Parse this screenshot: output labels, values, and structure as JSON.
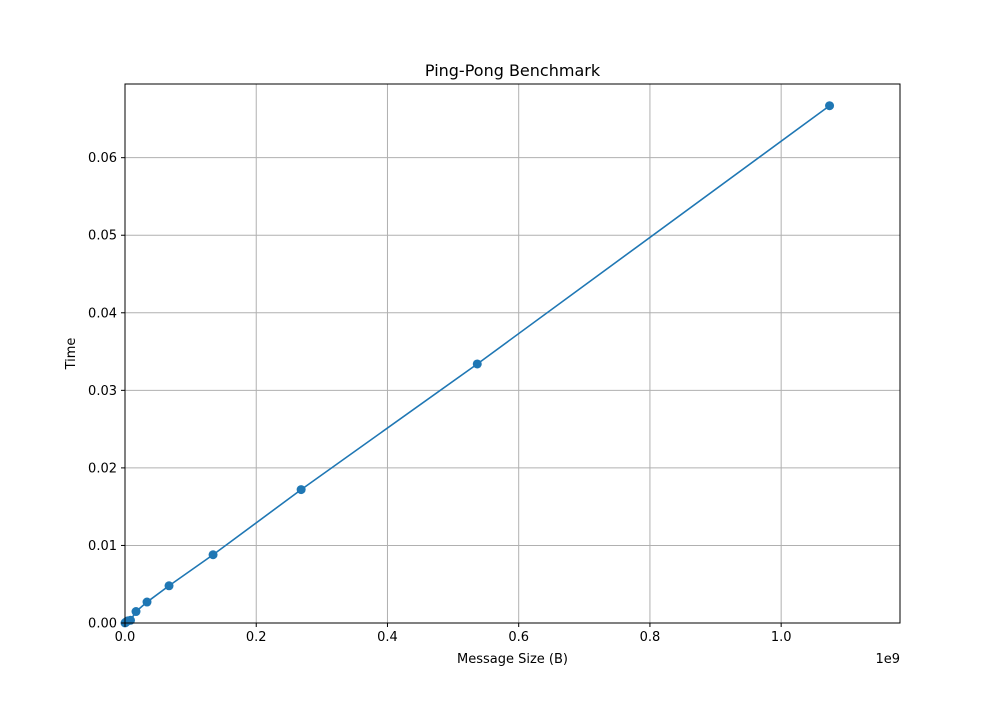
{
  "chart_data": {
    "type": "line",
    "title": "Ping-Pong Benchmark",
    "xlabel": "Message Size (B)",
    "ylabel": "Time",
    "x_offset_text": "1e9",
    "xlim": [
      0,
      1181116006
    ],
    "ylim": [
      0,
      0.0695
    ],
    "x_ticks": [
      0,
      200000000,
      400000000,
      600000000,
      800000000,
      1000000000
    ],
    "x_tick_labels": [
      "0.0",
      "0.2",
      "0.4",
      "0.6",
      "0.8",
      "1.0"
    ],
    "y_ticks": [
      0,
      0.01,
      0.02,
      0.03,
      0.04,
      0.05,
      0.06
    ],
    "y_tick_labels": [
      "0.00",
      "0.01",
      "0.02",
      "0.03",
      "0.04",
      "0.05",
      "0.06"
    ],
    "grid": true,
    "series": [
      {
        "color": "#1f77b4",
        "marker": "circle",
        "x": [
          1024,
          1048576,
          2097152,
          4194304,
          8388608,
          16777216,
          33554432,
          67108864,
          134217728,
          268435456,
          536870912,
          1073741824
        ],
        "y": [
          1e-05,
          8e-05,
          0.00015,
          0.00028,
          0.00035,
          0.00148,
          0.0027,
          0.0048,
          0.0088,
          0.0172,
          0.0334,
          0.0667
        ]
      }
    ]
  }
}
